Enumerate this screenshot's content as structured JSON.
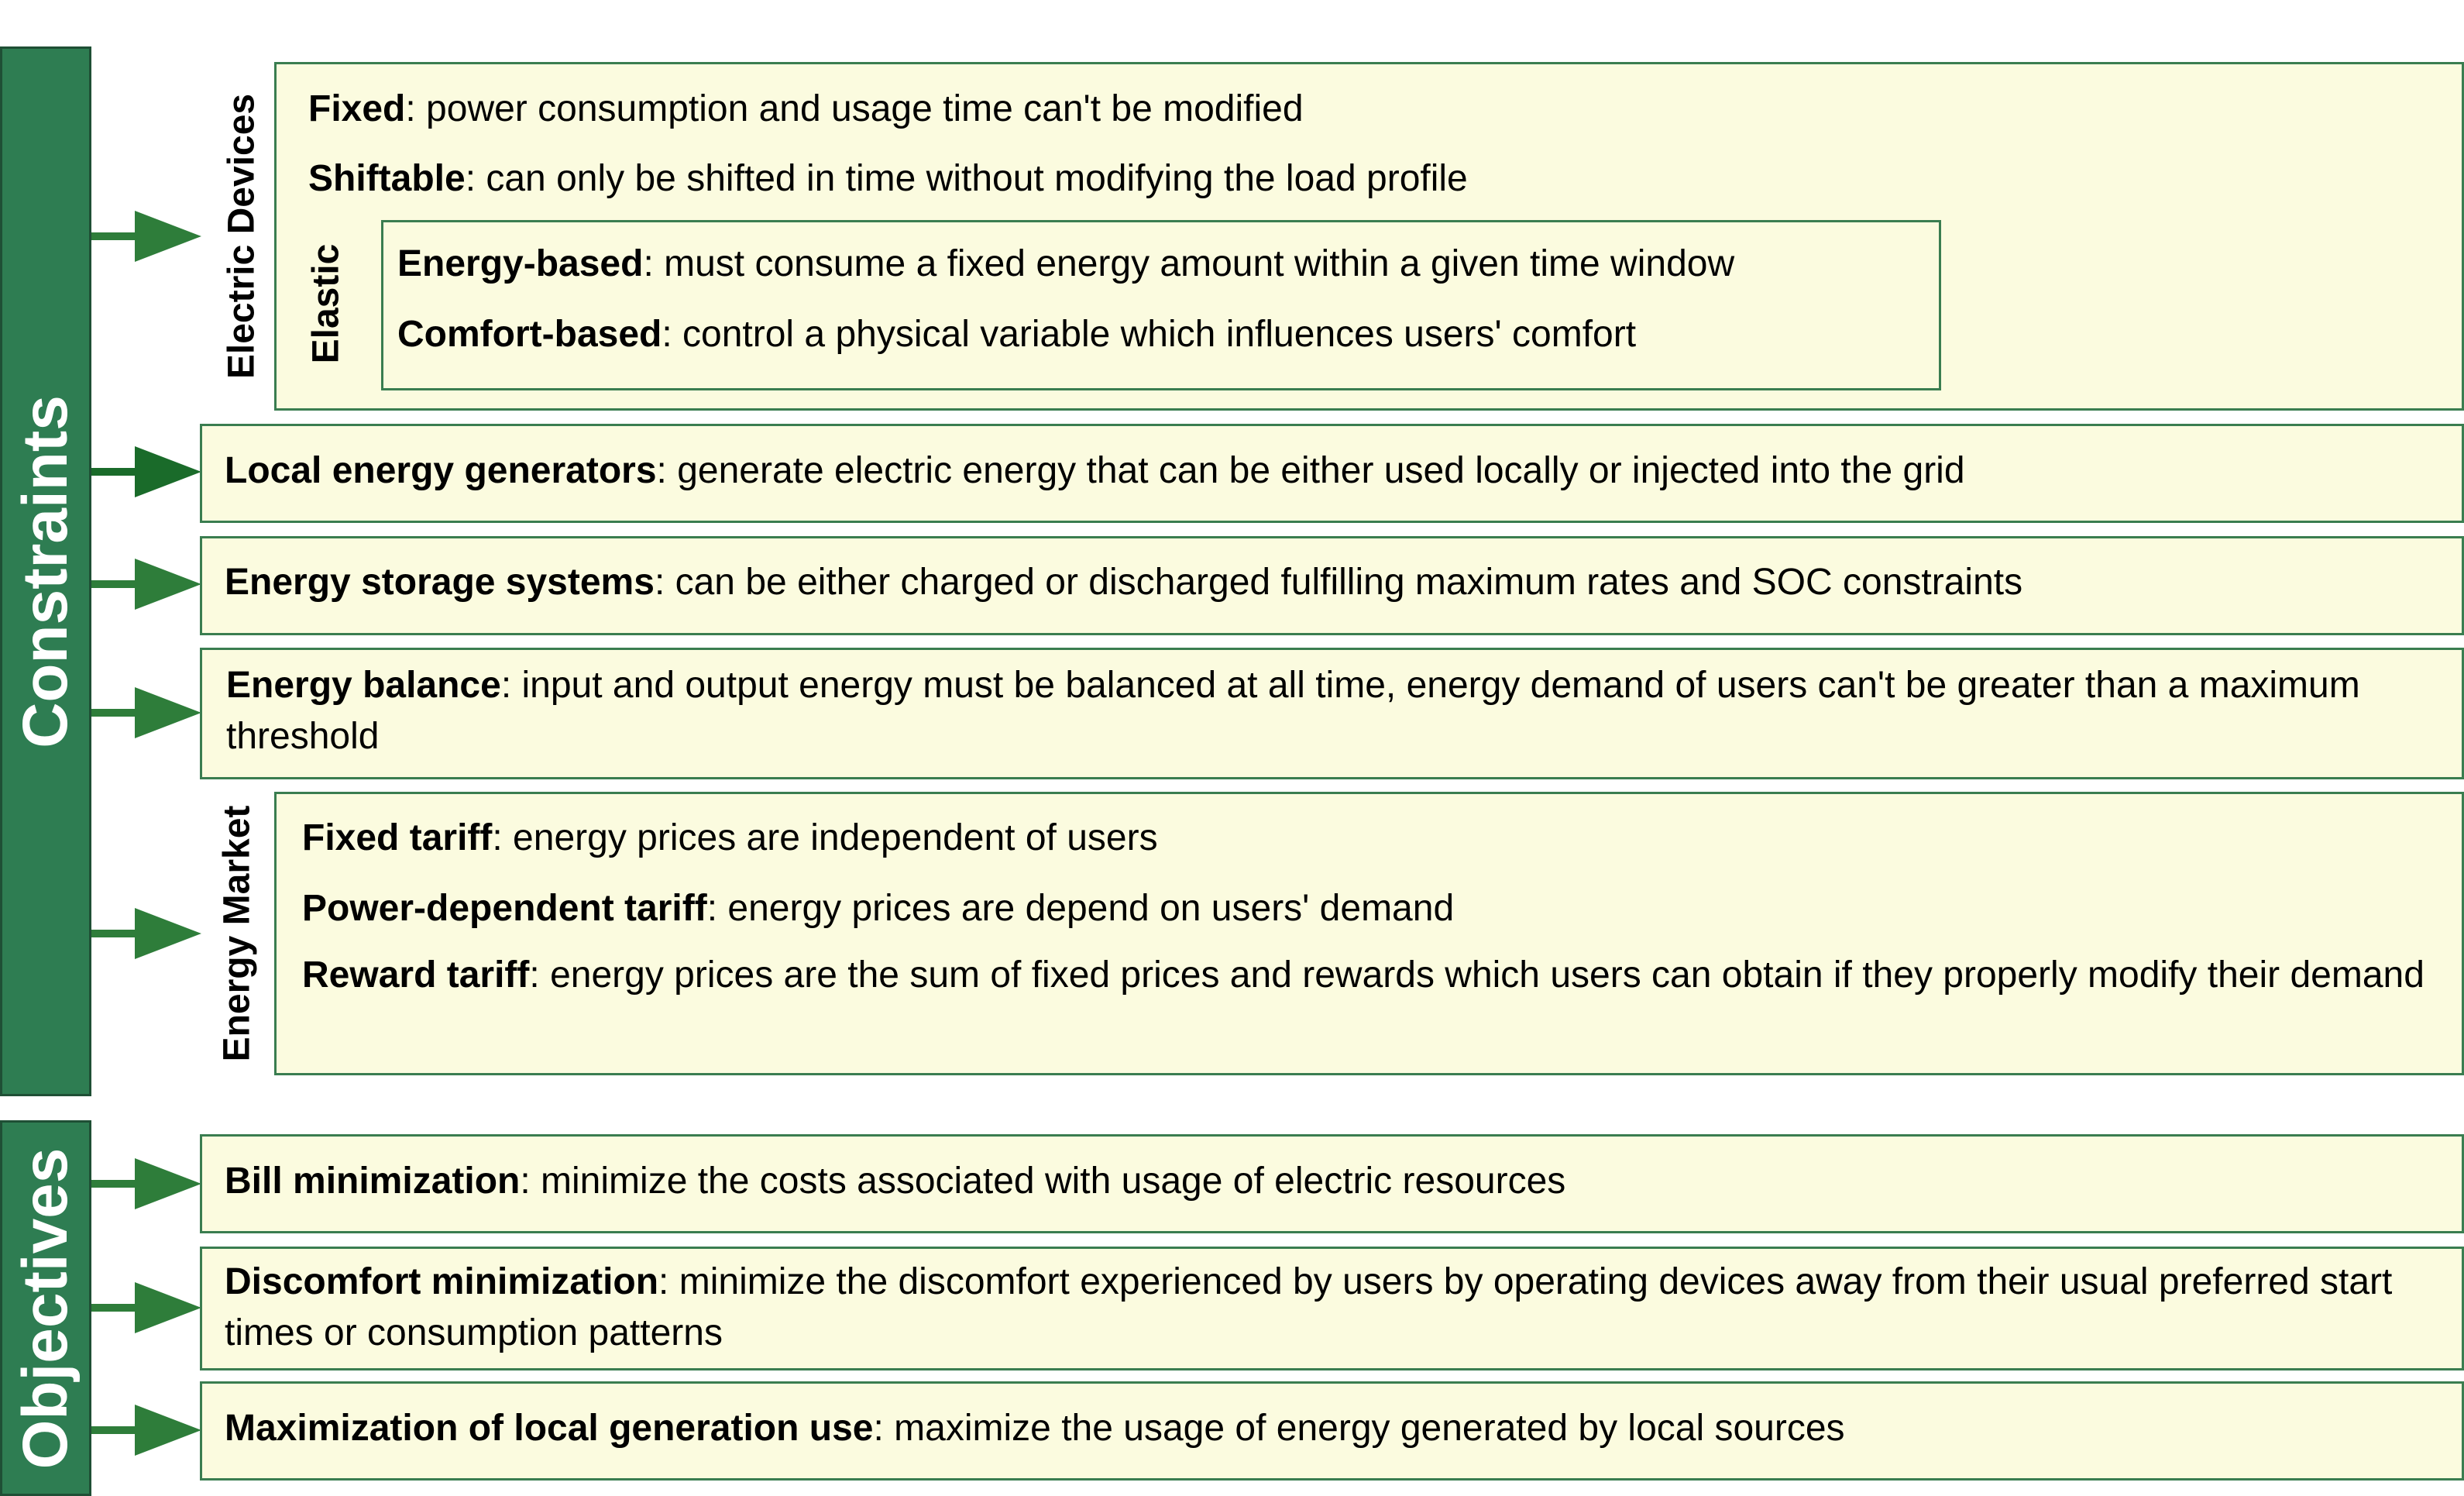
{
  "colors": {
    "sidebar": "#2e7d52",
    "box_fill": "#fbfbdf",
    "box_border": "#3a7d50",
    "arrow": "#2e7d3a",
    "arrow_dark": "#1a6b2a"
  },
  "constraints": {
    "label": "Constraints",
    "electric_devices": {
      "label": "Electric Devices",
      "fixed": {
        "term": "Fixed",
        "desc": ": power consumption and usage time can't be modified"
      },
      "shiftable": {
        "term": "Shiftable",
        "desc": ": can only be shifted in time without modifying the load profile"
      },
      "elastic": {
        "label": "Elastic",
        "energy_based": {
          "term": "Energy-based",
          "desc": ": must consume a fixed energy amount within a given time window"
        },
        "comfort_based": {
          "term": "Comfort-based",
          "desc": ": control a physical variable which influences users' comfort"
        }
      }
    },
    "local_generators": {
      "term": "Local energy generators",
      "desc": ": generate electric energy that can be either used locally or injected into the grid"
    },
    "storage": {
      "term": "Energy storage systems",
      "desc": ": can be either charged or discharged fulfilling maximum rates and SOC constraints"
    },
    "balance": {
      "term": "Energy balance",
      "desc": ": input and output energy must be balanced at all time, energy demand of users can't be greater than a maximum threshold"
    },
    "energy_market": {
      "label": "Energy Market",
      "fixed_tariff": {
        "term": "Fixed tariff",
        "desc": ": energy prices are independent of users"
      },
      "power_tariff": {
        "term": "Power-dependent tariff",
        "desc": ": energy prices are depend on users' demand"
      },
      "reward_tariff": {
        "term": "Reward tariff",
        "desc": ": energy prices are the sum of fixed prices and rewards which users can obtain if they properly modify their demand"
      }
    }
  },
  "objectives": {
    "label": "Objectives",
    "bill": {
      "term": "Bill minimization",
      "desc": ": minimize the costs associated with usage of electric resources"
    },
    "discomfort": {
      "term": "Discomfort minimization",
      "desc": ": minimize the discomfort experienced by users by operating devices away from their usual preferred start times or consumption patterns"
    },
    "local_generation": {
      "term": "Maximization of local generation use",
      "desc": ": maximize the usage of energy generated by local sources"
    }
  }
}
